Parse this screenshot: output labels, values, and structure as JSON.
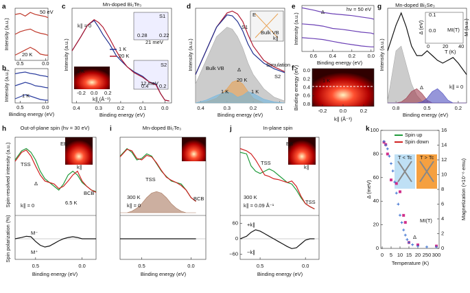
{
  "chart_data": [
    {
      "type": "line",
      "label": "a",
      "ylabel": "Intensity (a.u.)",
      "xlim": [
        0.6,
        -0.05
      ],
      "xticks": [
        0.5,
        {
          "value": 0,
          "label": "0.0"
        }
      ],
      "ylim": [
        0,
        1
      ],
      "x": [
        0.6,
        0.5,
        0.4,
        0.3,
        0.2,
        0.1,
        0.0,
        -0.05
      ],
      "series": [
        {
          "color": "#c0392b",
          "values": [
            0.88,
            0.9,
            0.85,
            0.92,
            0.88,
            0.86,
            0.84,
            0.82
          ]
        },
        {
          "color": "#c0392b",
          "values": [
            0.5,
            0.55,
            0.58,
            0.6,
            0.55,
            0.52,
            0.5,
            0.48
          ]
        },
        {
          "color": "#c0392b",
          "values": [
            0.1,
            0.15,
            0.2,
            0.25,
            0.2,
            0.12,
            0.1,
            0.1
          ]
        }
      ],
      "annotations": [
        "50 eV",
        "20 K"
      ]
    },
    {
      "type": "line",
      "label": "b",
      "ylabel": "Intensity (a.u.)",
      "xlabel": "Binding energy (eV)",
      "xlim": [
        0.6,
        -0.05
      ],
      "xticks": [
        0.5,
        {
          "value": 0,
          "label": "0.0"
        }
      ],
      "ylim": [
        0,
        1
      ],
      "x": [
        0.6,
        0.5,
        0.4,
        0.3,
        0.2,
        0.1,
        0.0,
        -0.05
      ],
      "series": [
        {
          "color": "#2c3e9f",
          "values": [
            0.85,
            0.88,
            0.9,
            0.86,
            0.84,
            0.8,
            0.78,
            0.76
          ]
        },
        {
          "color": "#2c3e9f",
          "values": [
            0.5,
            0.55,
            0.6,
            0.56,
            0.5,
            0.48,
            0.45,
            0.44
          ]
        },
        {
          "color": "#2c3e9f",
          "values": [
            0.12,
            0.18,
            0.24,
            0.2,
            0.15,
            0.1,
            0.08,
            0.08
          ]
        }
      ],
      "annotations": [
        "1 K"
      ]
    },
    {
      "type": "line",
      "label": "c",
      "title": "Mn-doped Bi₂Te₃",
      "ylabel": "Intensity (a.u.)",
      "xlabel": "Binding energy (eV)",
      "xlim": [
        0.42,
        -0.03
      ],
      "xticks": [
        0.4,
        0.3,
        0.2,
        0.1,
        {
          "value": 0,
          "label": "0.0"
        }
      ],
      "ylim": [
        0,
        1
      ],
      "x": [
        0.42,
        0.38,
        0.35,
        0.32,
        0.3,
        0.28,
        0.25,
        0.22,
        0.2,
        0.17,
        0.14,
        0.1,
        0.07,
        0.04,
        0.02,
        0.0,
        -0.02
      ],
      "series": [
        {
          "name": "1 K",
          "color": "#1f2f8f",
          "values": [
            0.55,
            0.7,
            0.82,
            0.87,
            0.8,
            0.72,
            0.62,
            0.5,
            0.45,
            0.38,
            0.33,
            0.28,
            0.22,
            0.2,
            0.1,
            0.03,
            0.02
          ]
        },
        {
          "name": "20 K",
          "color": "#b0182f",
          "values": [
            0.55,
            0.7,
            0.82,
            0.88,
            0.85,
            0.8,
            0.68,
            0.55,
            0.47,
            0.38,
            0.32,
            0.27,
            0.22,
            0.19,
            0.1,
            0.03,
            0.02
          ]
        }
      ],
      "annotations": [
        "k∥ = 0",
        "S1",
        "21 meV",
        "0.28",
        "0.22",
        "S2",
        "12 meV",
        "0.4",
        "0.2",
        "1 K",
        "-0.2",
        "0.0",
        "0.2",
        "k∥ (Å⁻¹)"
      ]
    },
    {
      "type": "line",
      "label": "d",
      "ylabel": "Intensity (a.u.)",
      "xlabel": "Binding energy (eV)",
      "xlim": [
        0.42,
        0.08
      ],
      "xticks": [
        0.4,
        0.3,
        0.2,
        0.1
      ],
      "ylim": [
        0,
        1
      ],
      "x": [
        0.42,
        0.38,
        0.34,
        0.3,
        0.28,
        0.26,
        0.24,
        0.22,
        0.2,
        0.16,
        0.12,
        0.08
      ],
      "series": [
        {
          "color": "#aaaaaa",
          "fill": true,
          "values": [
            0.2,
            0.45,
            0.7,
            0.8,
            0.78,
            0.7,
            0.58,
            0.42,
            0.3,
            0.15,
            0.06,
            0.02
          ]
        },
        {
          "color": "#e8a050",
          "fill": true,
          "values": [
            0,
            0.01,
            0.05,
            0.15,
            0.22,
            0.24,
            0.2,
            0.12,
            0.05,
            0,
            0,
            0
          ]
        },
        {
          "color": "#6fb6e0",
          "fill": true,
          "values": [
            0,
            0.03,
            0.08,
            0.12,
            0.1,
            0.06,
            0.08,
            0.12,
            0.1,
            0.04,
            0.01,
            0
          ]
        },
        {
          "color": "#b0182f",
          "values": [
            0.3,
            0.55,
            0.8,
            0.95,
            0.97,
            0.94,
            0.86,
            0.72,
            0.6,
            0.45,
            0.38,
            0.33
          ]
        },
        {
          "color": "#1f2f8f",
          "values": [
            0.3,
            0.55,
            0.8,
            0.93,
            0.92,
            0.86,
            0.76,
            0.62,
            0.52,
            0.42,
            0.36,
            0.32
          ]
        }
      ],
      "annotations": [
        "Bulk VB",
        "Simulation",
        "S1",
        "S2",
        "Δ",
        "20 K",
        "1 K",
        "1 K",
        "E",
        "k∥",
        "Bulk VB"
      ]
    },
    {
      "type": "line",
      "label": "e",
      "ylabel": "Intensity (a.u.)",
      "xlabel": "Binding energy (eV)",
      "xlim": [
        0.72,
        -0.03
      ],
      "xticks": [
        0.6,
        0.4,
        0.2,
        {
          "value": 0,
          "label": "0.0"
        }
      ],
      "ylim": [
        0,
        1
      ],
      "x": [
        0.72,
        0.6,
        0.5,
        0.4,
        0.3,
        0.2,
        0.1,
        0.0,
        -0.03
      ],
      "series": [
        {
          "color": "#6a3fb5",
          "values": [
            0.95,
            0.9,
            0.85,
            0.82,
            0.8,
            0.78,
            0.75,
            0.72,
            0.7
          ]
        },
        {
          "color": "#6a3fb5",
          "values": [
            0.6,
            0.58,
            0.55,
            0.5,
            0.48,
            0.45,
            0.42,
            0.4,
            0.38
          ]
        },
        {
          "color": "#6a3fb5",
          "values": [
            0.3,
            0.28,
            0.26,
            0.22,
            0.18,
            0.15,
            0.12,
            0.1,
            0.1
          ]
        }
      ],
      "annotations": [
        "hν = 50 eV",
        "Δ"
      ]
    },
    {
      "type": "heatmap",
      "label": "f",
      "ylabel": "Binding energy (eV)",
      "xlabel": "k∥ (Å⁻¹)",
      "xlim": [
        -0.3,
        0.3
      ],
      "xticks": [
        -0.2,
        {
          "value": 0,
          "label": "0.0"
        },
        0.2
      ],
      "ylim": [
        0.85,
        -0.05
      ],
      "yticks": [
        {
          "value": 0,
          "label": "0.0"
        },
        0.2,
        0.4,
        0.6,
        0.8
      ],
      "annotations": [
        "1 K"
      ]
    },
    {
      "type": "line",
      "label": "g",
      "title": "Mn-doped Bi₂Se₃",
      "ylabel": "Intensity (a.u.)",
      "xlabel": "Binding energy (eV)",
      "xlim": [
        0.88,
        0.12
      ],
      "xticks": [
        0.8,
        0.5,
        0.2
      ],
      "ylim": [
        0,
        1
      ],
      "x": [
        0.88,
        0.8,
        0.75,
        0.7,
        0.65,
        0.6,
        0.55,
        0.5,
        0.45,
        0.4,
        0.35,
        0.3,
        0.25,
        0.2,
        0.12
      ],
      "series": [
        {
          "color": "#aaaaaa",
          "fill": true,
          "values": [
            0.02,
            0.55,
            0.6,
            0.4,
            0.2,
            0.08,
            0.02,
            0,
            0,
            0,
            0,
            0,
            0,
            0,
            0
          ]
        },
        {
          "color": "#a04050",
          "fill": true,
          "values": [
            0,
            0,
            0.01,
            0.05,
            0.12,
            0.15,
            0.1,
            0.03,
            0,
            0,
            0,
            0,
            0,
            0,
            0
          ]
        },
        {
          "color": "#5050c0",
          "fill": true,
          "values": [
            0,
            0,
            0,
            0,
            0,
            0,
            0.01,
            0.05,
            0.12,
            0.15,
            0.1,
            0.03,
            0,
            0,
            0
          ]
        },
        {
          "color": "#111111",
          "values": [
            0.55,
            0.82,
            0.95,
            0.8,
            0.6,
            0.5,
            0.5,
            0.55,
            0.5,
            0.45,
            0.42,
            0.45,
            0.48,
            0.42,
            0.3
          ]
        }
      ],
      "annotations": [
        "Δ",
        "k∥ = 0",
        "Δ (eV)",
        "M (a.u.)",
        "T (K)",
        "0",
        "20",
        "40",
        "0.1",
        "0.0",
        "MI(T)"
      ]
    },
    {
      "type": "line",
      "label": "h",
      "title": "Out-of-plane spin (hν = 30 eV)",
      "ylabel": "Spin-resolved intensity (a.u.)",
      "xlabel": "Binding energy (eV)",
      "xlim": [
        0.72,
        -0.15
      ],
      "xticks": [
        0.5,
        {
          "value": 0,
          "label": "0.0"
        }
      ],
      "ylim": [
        0,
        1
      ],
      "x": [
        0.72,
        0.65,
        0.6,
        0.55,
        0.5,
        0.45,
        0.4,
        0.35,
        0.3,
        0.25,
        0.2,
        0.15,
        0.1,
        0.05,
        0.0,
        -0.05,
        -0.1,
        -0.15
      ],
      "series": [
        {
          "name": "Spin up",
          "color": "#1f9a3a",
          "values": [
            0.7,
            0.82,
            0.85,
            0.8,
            0.7,
            0.55,
            0.45,
            0.4,
            0.35,
            0.3,
            0.38,
            0.5,
            0.55,
            0.5,
            0.4,
            0.35,
            0.3,
            0.28
          ]
        },
        {
          "name": "Spin down",
          "color": "#d02020",
          "values": [
            0.68,
            0.8,
            0.83,
            0.75,
            0.62,
            0.5,
            0.42,
            0.4,
            0.38,
            0.32,
            0.35,
            0.42,
            0.5,
            0.55,
            0.42,
            0.35,
            0.3,
            0.27
          ]
        }
      ],
      "polarization": {
        "ylabel": "Spin polarization (%)",
        "ylim": [
          -80,
          80
        ],
        "series": [
          {
            "color": "#111111",
            "values": [
              0,
              5,
              10,
              8,
              -10,
              -25,
              -32,
              -28,
              -18,
              -8,
              0,
              5,
              8,
              5,
              0,
              0,
              0,
              0
            ]
          }
        ]
      },
      "annotations": [
        "TSS",
        "Δ",
        "k∥ = 0",
        "6.5 K",
        "BCB",
        "M⁻",
        "M⁺",
        "EB",
        "k∥"
      ]
    },
    {
      "type": "line",
      "label": "i",
      "title": "Mn-doped Bi₂Te₃",
      "xlabel": "Binding energy (eV)",
      "xlim": [
        0.72,
        -0.15
      ],
      "xticks": [
        0.5,
        {
          "value": 0,
          "label": "0.0"
        }
      ],
      "ylim": [
        0,
        1
      ],
      "x": [
        0.72,
        0.65,
        0.6,
        0.55,
        0.5,
        0.45,
        0.4,
        0.35,
        0.3,
        0.25,
        0.2,
        0.15,
        0.1,
        0.05,
        0.0,
        -0.05
      ],
      "series": [
        {
          "color": "#aa7a60",
          "fill": true,
          "values": [
            0,
            0,
            0.02,
            0.06,
            0.12,
            0.2,
            0.26,
            0.28,
            0.26,
            0.2,
            0.12,
            0.06,
            0.02,
            0,
            0,
            0
          ]
        },
        {
          "color": "#1f9a3a",
          "values": [
            0.75,
            0.85,
            0.8,
            0.7,
            0.72,
            0.78,
            0.75,
            0.65,
            0.55,
            0.48,
            0.42,
            0.4,
            0.38,
            0.3,
            0.2,
            0.15
          ]
        },
        {
          "color": "#d02020",
          "values": [
            0.74,
            0.84,
            0.82,
            0.72,
            0.7,
            0.76,
            0.74,
            0.66,
            0.56,
            0.47,
            0.43,
            0.4,
            0.36,
            0.3,
            0.2,
            0.15
          ]
        }
      ],
      "polarization": {
        "ylim": [
          -80,
          80
        ],
        "series": [
          {
            "color": "#111111",
            "values": [
              0,
              0,
              0,
              0,
              0,
              0,
              0,
              0,
              0,
              0,
              0,
              0,
              0,
              0,
              0,
              0
            ]
          }
        ]
      },
      "annotations": [
        "TSS",
        "300 K",
        "k∥ = 0",
        "BCB"
      ]
    },
    {
      "type": "line",
      "label": "j",
      "title": "In-plane spin",
      "xlabel": "Binding energy (eV)",
      "xlim": [
        0.72,
        -0.15
      ],
      "xticks": [
        0.5,
        {
          "value": 0,
          "label": "0.0"
        }
      ],
      "ylim": [
        0,
        1
      ],
      "x": [
        0.72,
        0.65,
        0.6,
        0.55,
        0.5,
        0.45,
        0.4,
        0.35,
        0.3,
        0.25,
        0.2,
        0.15,
        0.1,
        0.05,
        0.0,
        -0.05,
        -0.1
      ],
      "series": [
        {
          "color": "#1f9a3a",
          "values": [
            0.8,
            0.78,
            0.62,
            0.55,
            0.52,
            0.55,
            0.58,
            0.55,
            0.5,
            0.45,
            0.4,
            0.38,
            0.3,
            0.2,
            0.12,
            0.08,
            0.05
          ]
        },
        {
          "color": "#d02020",
          "values": [
            0.85,
            0.82,
            0.78,
            0.7,
            0.6,
            0.5,
            0.48,
            0.45,
            0.44,
            0.42,
            0.4,
            0.42,
            0.35,
            0.22,
            0.12,
            0.08,
            0.05
          ]
        }
      ],
      "polarization": {
        "ylim": [
          -80,
          80
        ],
        "yticks": [
          60,
          0,
          {
            "value": -60,
            "label": "−60"
          }
        ],
        "series": [
          {
            "color": "#111111",
            "values": [
              0,
              10,
              25,
              35,
              30,
              20,
              10,
              0,
              -10,
              -20,
              -30,
              -38,
              -35,
              -20,
              -5,
              0,
              0
            ]
          }
        ]
      },
      "annotations": [
        "TSS",
        "TSS",
        "300 K",
        "k∥ = 0.09 Å⁻¹",
        "+k∥",
        "−k∥",
        "EB",
        "k∥"
      ]
    },
    {
      "type": "scatter",
      "label": "k",
      "xlabel": "Temperature (K)",
      "ylabel": "Δ (meV)",
      "y2label": "Magnetization (×10⁻⁶ emu)",
      "xlim": [
        0,
        300
      ],
      "xticks": [
        0,
        5,
        10,
        15,
        20,
        250,
        300
      ],
      "ylim": [
        0,
        100
      ],
      "yticks": [
        0,
        20,
        40,
        60,
        80,
        100
      ],
      "y2lim": [
        0,
        16
      ],
      "y2ticks": [
        0,
        2,
        4,
        6,
        8,
        10,
        12,
        14,
        16
      ],
      "series": [
        {
          "color": "#d0308a",
          "marker": "square",
          "x": [
            1,
            2,
            3,
            5,
            8,
            10,
            12,
            13,
            15,
            20,
            300
          ],
          "values": [
            90,
            88,
            80,
            58,
            55,
            48,
            28,
            22,
            5,
            3,
            2
          ]
        },
        {
          "color": "#3a6fd0",
          "marker": "cross",
          "axis": "y2",
          "x": [
            1,
            2,
            3,
            4,
            5,
            6,
            7,
            8,
            9,
            10,
            11,
            12,
            13,
            14,
            15,
            17,
            20,
            250,
            300
          ],
          "values": [
            14.5,
            14,
            13.5,
            12.5,
            11.5,
            10.5,
            9,
            7.5,
            6,
            4.5,
            3.5,
            2.5,
            1.8,
            1.2,
            0.8,
            0.5,
            0.3,
            0.2,
            0.2
          ]
        }
      ],
      "annotations": [
        "T < Tc",
        "T > Tc",
        "MI(T)",
        "Δ"
      ]
    }
  ]
}
